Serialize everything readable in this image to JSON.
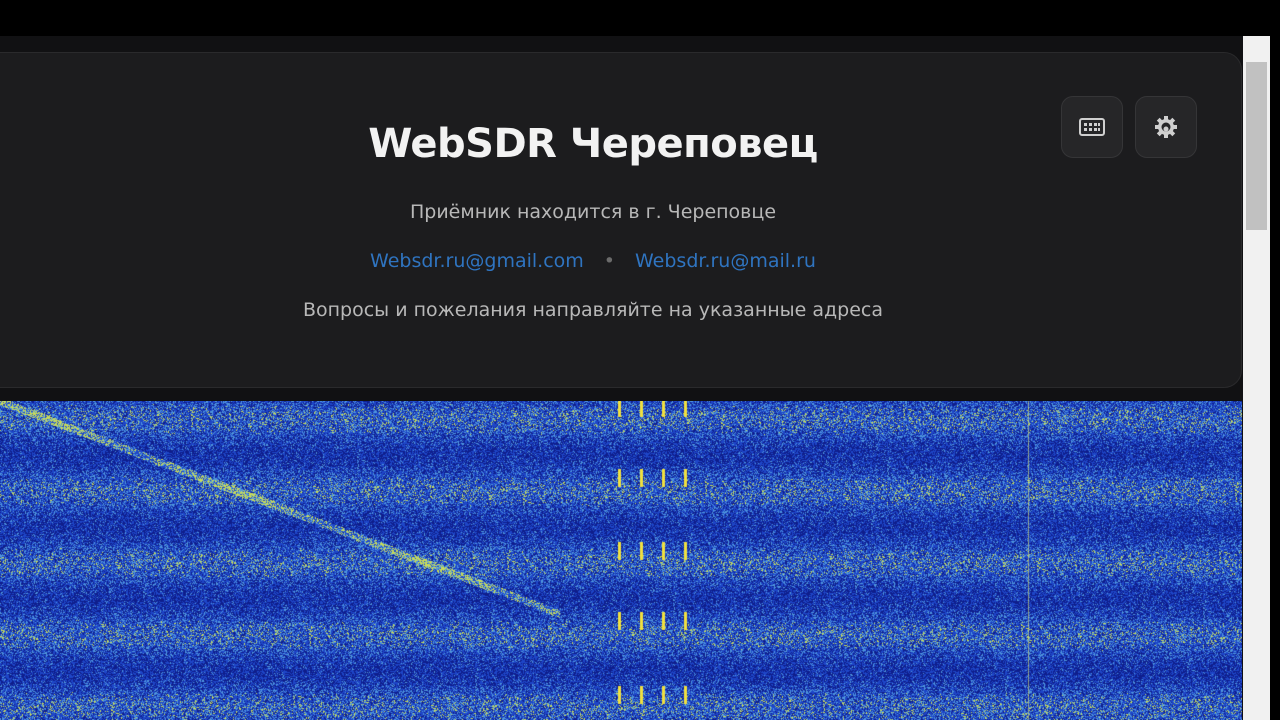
{
  "header": {
    "title": "WebSDR Череповец",
    "subtitle": "Приёмник находится в г. Череповце",
    "email_1": "Websdr.ru@gmail.com",
    "separator": "•",
    "email_2": "Websdr.ru@mail.ru",
    "note": "Вопросы и пожелания направляйте на указанные адреса"
  },
  "toolbar": {
    "keyboard_icon": "keyboard-icon",
    "settings_icon": "gear-icon"
  },
  "colors": {
    "panel_bg": "#1c1c1e",
    "link": "#2f74c0",
    "waterfall_base": "#1e3fbf",
    "waterfall_signal": "#f0e040"
  }
}
